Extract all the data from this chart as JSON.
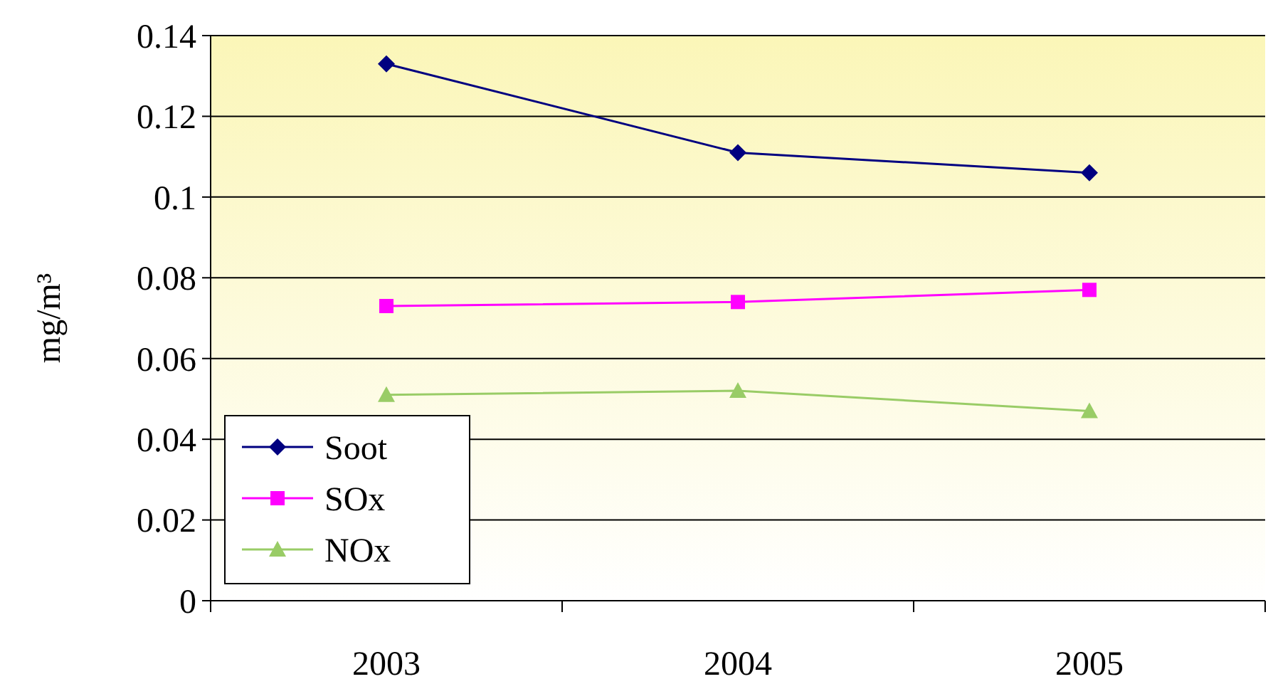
{
  "chart_data": {
    "type": "line",
    "ylabel": "mg/m³",
    "categories": [
      "2003",
      "2004",
      "2005"
    ],
    "series": [
      {
        "name": "Soot",
        "color": "#000080",
        "marker": "diamond",
        "values": [
          0.133,
          0.111,
          0.106
        ]
      },
      {
        "name": "SOx",
        "color": "#ff00ff",
        "marker": "square",
        "values": [
          0.073,
          0.074,
          0.077
        ]
      },
      {
        "name": "NOx",
        "color": "#99cc66",
        "marker": "triangle",
        "values": [
          0.051,
          0.052,
          0.047
        ]
      }
    ],
    "ylim": [
      0,
      0.14
    ],
    "yticks": [
      0,
      0.02,
      0.04,
      0.06,
      0.08,
      0.1,
      0.12,
      0.14
    ],
    "grid": "y",
    "legend": "bottom left",
    "line_style": "solid"
  }
}
